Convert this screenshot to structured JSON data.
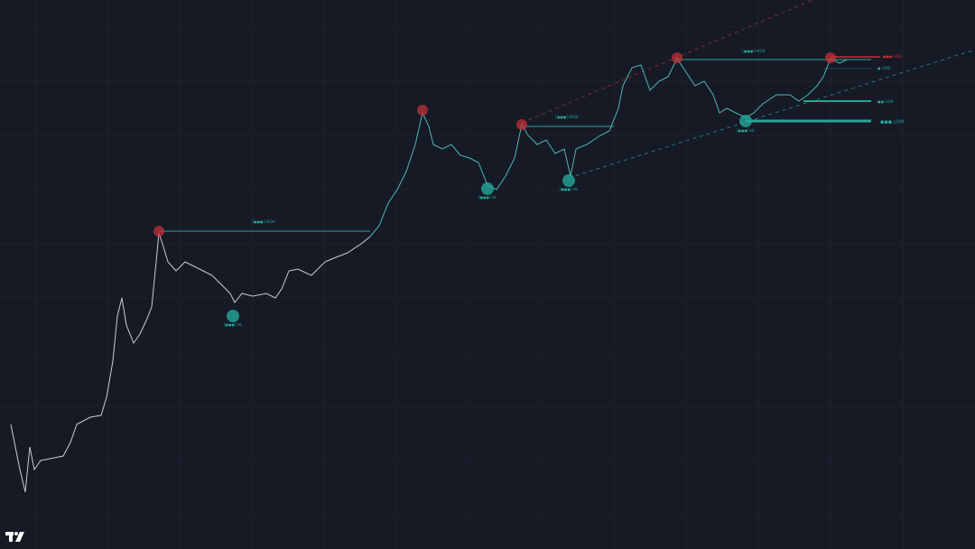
{
  "annotations": [
    {
      "text": "[●●●] HIGH"
    },
    {
      "text": "[●●●] HL"
    },
    {
      "text": "[●●●] HIGH"
    },
    {
      "text": "[●●●] HL"
    },
    {
      "text": "[●●●] HL"
    },
    {
      "text": "[●●●] HIGH"
    },
    {
      "text": "[●●●] HL"
    },
    {
      "text": "●●● HIGH"
    },
    {
      "text": "● LOW"
    },
    {
      "text": "●● LOW"
    },
    {
      "text": "●●● LOW"
    }
  ]
}
